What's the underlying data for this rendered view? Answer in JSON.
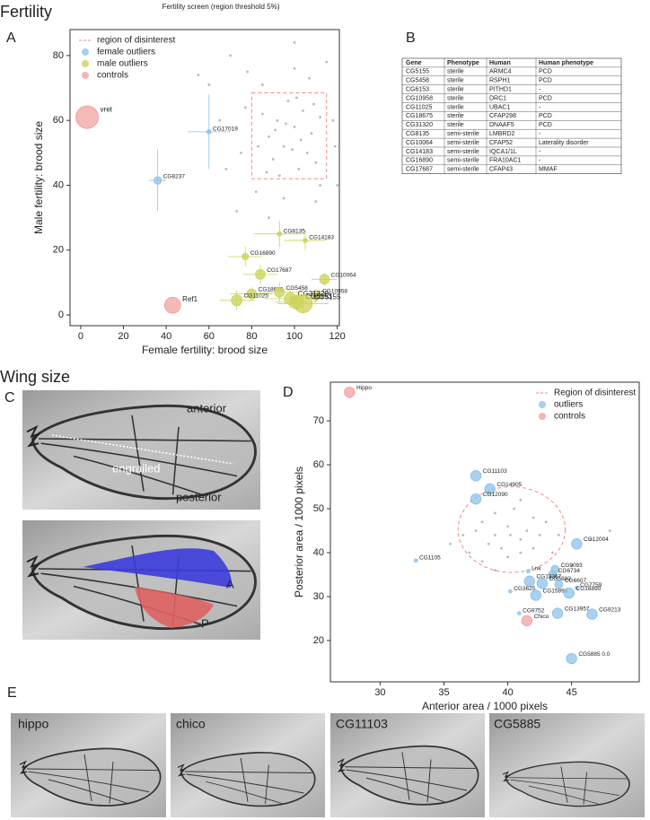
{
  "headings": {
    "fertility": "Fertility",
    "wing_size": "Wing size"
  },
  "panels": [
    "A",
    "B",
    "C",
    "D",
    "E"
  ],
  "chart_data": [
    {
      "type": "scatter",
      "title": "Fertility screen (region threshold 5%)",
      "xlabel": "Female fertility: brood size",
      "ylabel": "Male fertility: brood size",
      "xlim": [
        -5,
        121
      ],
      "ylim": [
        -3.3,
        88
      ],
      "xticks": [
        0,
        20,
        40,
        60,
        80,
        100,
        120
      ],
      "yticks": [
        0,
        20,
        40,
        60,
        80
      ],
      "legend": "upper left",
      "region": {
        "name": "region of disinterest",
        "color": "#f08a8a",
        "shape": "rect",
        "x": [
          80,
          115
        ],
        "y": [
          42,
          68.5
        ]
      },
      "series": [
        {
          "color": "#bbbbbb",
          "x": [
            85,
            88,
            90,
            92,
            95,
            97,
            100,
            102,
            104,
            106,
            108,
            110,
            112,
            87,
            93,
            99,
            103,
            96,
            91,
            109,
            83,
            101,
            70,
            78,
            100,
            115,
            60,
            118,
            119,
            75,
            68,
            120,
            65,
            82,
            95,
            110,
            73,
            88,
            100,
            107,
            55,
            85,
            112,
            77
          ],
          "y": [
            62,
            55,
            48,
            60,
            52,
            66,
            58,
            45,
            63,
            50,
            56,
            47,
            61,
            44,
            43,
            51,
            54,
            59,
            57,
            65,
            52,
            67,
            80,
            75,
            84,
            78,
            71,
            60,
            52,
            50,
            45,
            40,
            60,
            38,
            36,
            35,
            32,
            30,
            76,
            73,
            74,
            71,
            40,
            64
          ]
        },
        {
          "name": "female outliers",
          "color": "#8ec3ea",
          "labels": [
            "CG17019",
            "CG8237"
          ],
          "x": [
            60,
            36
          ],
          "y": [
            56.5,
            41.5
          ],
          "xerr": [
            10,
            4
          ],
          "yerr": [
            11.5,
            9.5
          ],
          "size": [
            1.5,
            3
          ]
        },
        {
          "name": "male outliers",
          "color": "#ccd35a",
          "labels": [
            "CG8135",
            "CG14183",
            "CG16890",
            "CG17687",
            "CG10064",
            "CG18675",
            "CG5458",
            "CG10958",
            "CG11025",
            "CG31320",
            "CG6153",
            "CG5155"
          ],
          "x": [
            93,
            105,
            77,
            84,
            114,
            80,
            93,
            110,
            73,
            98,
            101,
            104
          ],
          "y": [
            25,
            23,
            18,
            12.5,
            11,
            6.5,
            7,
            6,
            4.5,
            5,
            4,
            3.5
          ],
          "xerr": [
            12,
            10,
            8,
            8,
            6,
            10,
            10,
            7,
            8,
            12,
            10,
            12
          ],
          "yerr": [
            4,
            3,
            3,
            3,
            2,
            2,
            3,
            2,
            3,
            3,
            2,
            3
          ],
          "size": [
            1.5,
            1.5,
            2.5,
            4,
            4,
            4,
            4,
            4,
            4.5,
            5,
            6,
            8
          ]
        },
        {
          "name": "controls",
          "color": "#f4a0a0",
          "labels": [
            "vret",
            "Ref1"
          ],
          "x": [
            3,
            43
          ],
          "y": [
            61,
            3
          ],
          "size": [
            10,
            7
          ]
        }
      ]
    },
    {
      "type": "scatter",
      "xlabel": "Anterior area / 1000 pixels",
      "ylabel": "Posterior area / 1000 pixels",
      "xlim": [
        26.1,
        50.3
      ],
      "ylim": [
        10.6,
        78.8
      ],
      "xticks": [
        30,
        35,
        40,
        45
      ],
      "yticks": [
        20,
        30,
        40,
        50,
        60,
        70
      ],
      "legend": "upper right",
      "region": {
        "name": "Region of disinterest",
        "color": "#f08a8a",
        "shape": "ellipse",
        "x": [
          36.1,
          44.5
        ],
        "y": [
          35.5,
          55
        ]
      },
      "series": [
        {
          "color": "#bbbbbb",
          "x": [
            38,
            39,
            40,
            41,
            42,
            39.5,
            40.5,
            41.5,
            38.5,
            42.5,
            40,
            37.5,
            43,
            39,
            41,
            40.2,
            38,
            42,
            44,
            36.5,
            43.5,
            41,
            39,
            35.5,
            46.5,
            48,
            45,
            37
          ],
          "y": [
            47,
            44,
            46,
            43,
            48,
            41,
            50,
            45,
            42,
            44,
            39,
            45,
            47,
            49,
            40,
            44,
            38,
            41,
            44,
            44,
            40,
            52,
            36,
            42,
            43,
            45,
            37,
            40
          ]
        },
        {
          "name": "outliers",
          "color": "#8ec3ea",
          "labels": [
            "CG11103",
            "CG14905",
            "CG12090",
            "CG12004",
            "CG1105",
            "Lnk",
            "CG9093",
            "CG6734",
            "CG6607",
            "CG7759",
            "CG13367",
            "CG5882",
            "CG3625",
            "CG15896",
            "CG16890",
            "CG13957",
            "CG9213",
            "CG9752",
            "CG5885 0.0"
          ],
          "x": [
            37.5,
            38.6,
            37.5,
            45.4,
            32.8,
            41.6,
            43.7,
            43.5,
            44.0,
            45.4,
            41.7,
            42.7,
            40.2,
            42.2,
            44.8,
            43.9,
            46.6,
            40.9,
            45.0
          ],
          "y": [
            57.5,
            54.5,
            52.2,
            42,
            38.2,
            35.8,
            36.2,
            35.0,
            32.8,
            32.0,
            33.5,
            33.0,
            31.2,
            30.3,
            30.8,
            26.2,
            26.0,
            26.2,
            15.9
          ],
          "size": [
            4,
            4,
            4,
            4,
            1,
            1,
            3,
            3,
            3,
            1,
            4,
            4,
            1,
            4,
            4,
            4,
            4,
            1,
            4
          ]
        },
        {
          "name": "controls",
          "color": "#f4a0a0",
          "labels": [
            "Hippo",
            "Chico"
          ],
          "x": [
            27.6,
            41.5
          ],
          "y": [
            76.5,
            24.5
          ],
          "size": [
            4,
            4
          ]
        }
      ]
    }
  ],
  "table": {
    "header": [
      "Gene",
      "Phenotype",
      "Human",
      "Human phenotype"
    ],
    "rows": [
      [
        "CG5155",
        "sterile",
        "ARMC4",
        "PCD"
      ],
      [
        "CG5458",
        "sterile",
        "RSPH1",
        "PCD"
      ],
      [
        "CG6153",
        "sterile",
        "PITHD1",
        "-"
      ],
      [
        "CG10958",
        "sterile",
        "DRC1",
        "PCD"
      ],
      [
        "CG11025",
        "sterile",
        "UBAC1",
        "-"
      ],
      [
        "CG18675",
        "sterile",
        "CFAP298",
        "PCD"
      ],
      [
        "CG31320",
        "sterile",
        "DNAAF5",
        "PCD"
      ],
      [
        "CG8135",
        "semi-sterile",
        "LMBRD2",
        "-"
      ],
      [
        "CG10064",
        "semi-sterile",
        "CFAP52",
        "Laterality disorder"
      ],
      [
        "CG14183",
        "semi-sterile",
        "IQCA1/1L",
        "-"
      ],
      [
        "CG16890",
        "semi-sterile",
        "FRA10AC1",
        "-"
      ],
      [
        "CG17687",
        "semi-sterile",
        "CFAP43",
        "MMAF"
      ]
    ]
  },
  "wing_annotations": {
    "anterior": "anterior",
    "engrailed": "engrailed",
    "posterior": "posterior",
    "A": "A",
    "P": "P"
  },
  "wing_examples": [
    "hippo",
    "chico",
    "CG11103",
    "CG5885"
  ]
}
